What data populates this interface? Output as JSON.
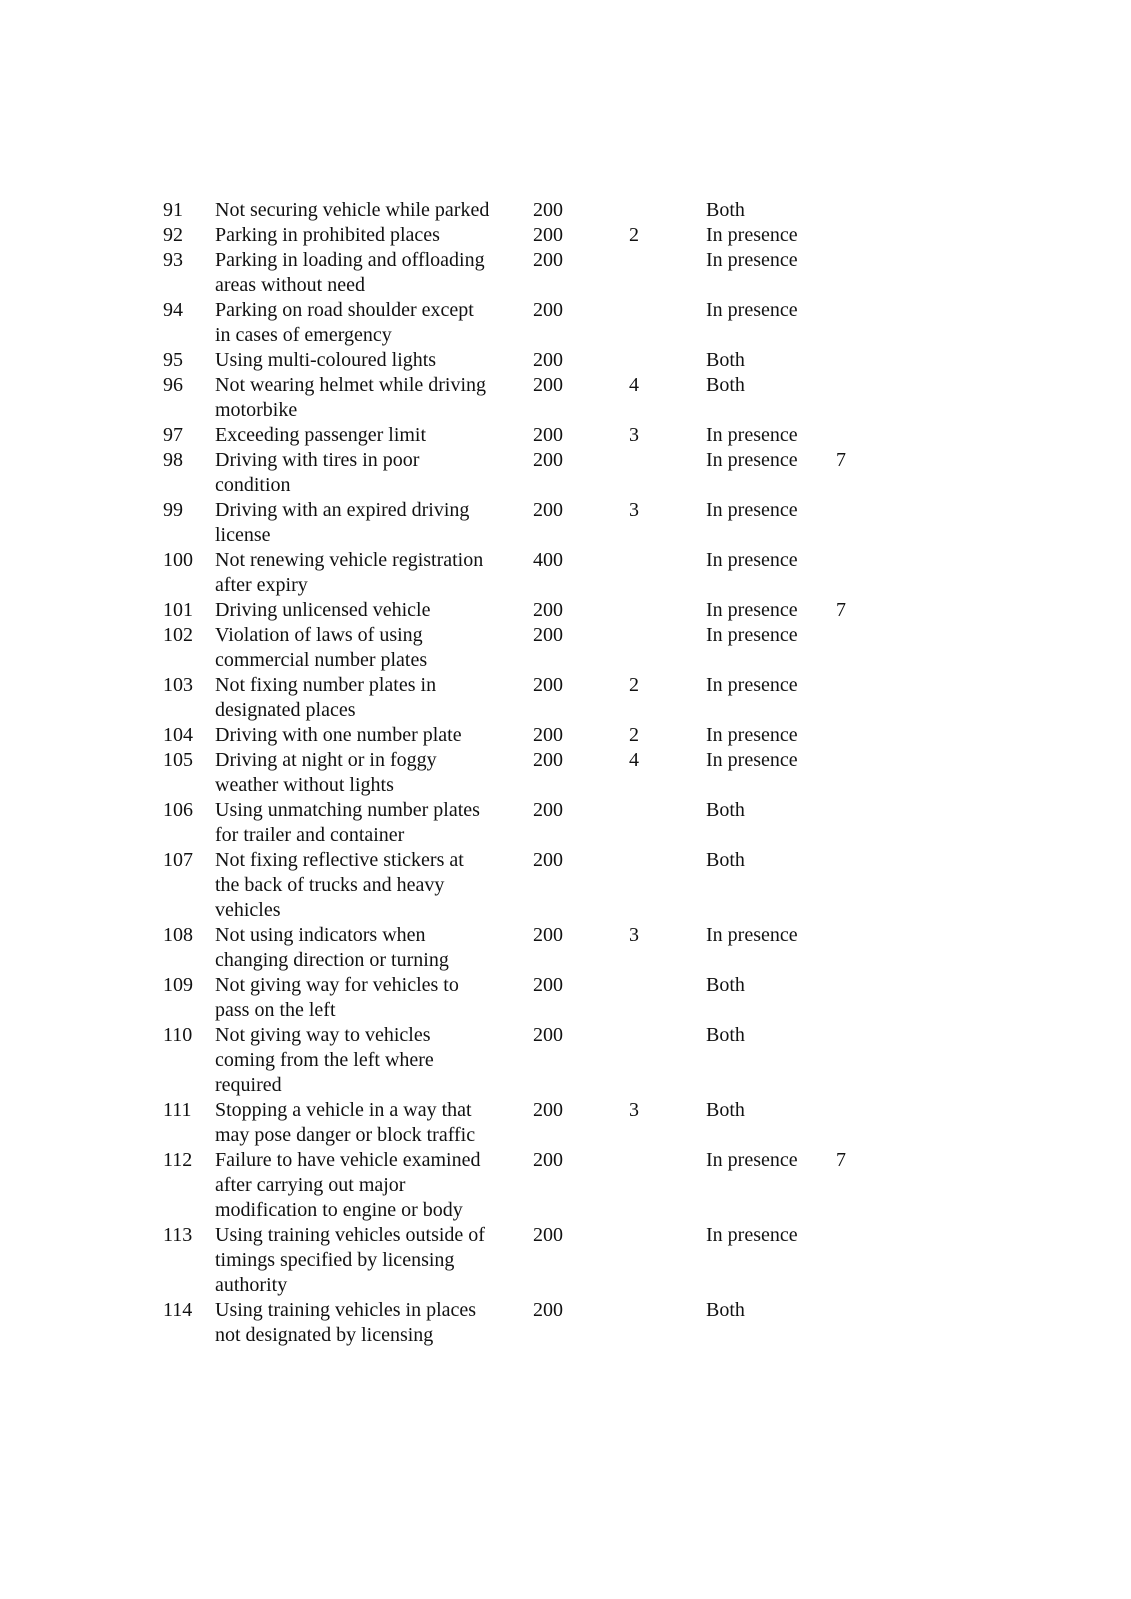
{
  "rows": [
    {
      "num": "91",
      "desc": [
        "Not securing vehicle while parked"
      ],
      "fine": "200",
      "points": "",
      "type": "Both",
      "extra": ""
    },
    {
      "num": "92",
      "desc": [
        "Parking in prohibited places"
      ],
      "fine": "200",
      "points": "2",
      "type": "In presence",
      "extra": ""
    },
    {
      "num": "93",
      "desc": [
        "Parking in loading and offloading",
        "areas without need"
      ],
      "fine": "200",
      "points": "",
      "type": "In presence",
      "extra": ""
    },
    {
      "num": "94",
      "desc": [
        "Parking on road shoulder except",
        "in cases of emergency"
      ],
      "fine": "200",
      "points": "",
      "type": "In presence",
      "extra": ""
    },
    {
      "num": "95",
      "desc": [
        "Using multi-coloured lights"
      ],
      "fine": "200",
      "points": "",
      "type": "Both",
      "extra": ""
    },
    {
      "num": "96",
      "desc": [
        "Not wearing helmet while driving",
        "motorbike"
      ],
      "fine": "200",
      "points": "4",
      "type": "Both",
      "extra": ""
    },
    {
      "num": "97",
      "desc": [
        "Exceeding passenger limit"
      ],
      "fine": "200",
      "points": "3",
      "type": "In presence",
      "extra": ""
    },
    {
      "num": "98",
      "desc": [
        "Driving with tires in poor",
        "condition"
      ],
      "fine": "200",
      "points": "",
      "type": "In presence",
      "extra": "7"
    },
    {
      "num": "99",
      "desc": [
        "Driving with an expired driving",
        "license"
      ],
      "fine": "200",
      "points": "3",
      "type": "In presence",
      "extra": ""
    },
    {
      "num": "100",
      "desc": [
        "Not renewing vehicle registration",
        "after expiry"
      ],
      "fine": "400",
      "points": "",
      "type": "In presence",
      "extra": ""
    },
    {
      "num": "101",
      "desc": [
        "Driving unlicensed vehicle"
      ],
      "fine": "200",
      "points": "",
      "type": "In presence",
      "extra": "7"
    },
    {
      "num": "102",
      "desc": [
        "Violation of laws of using",
        "commercial number plates"
      ],
      "fine": "200",
      "points": "",
      "type": "In presence",
      "extra": ""
    },
    {
      "num": "103",
      "desc": [
        "Not fixing number plates in",
        "designated places"
      ],
      "fine": "200",
      "points": "2",
      "type": "In presence",
      "extra": ""
    },
    {
      "num": "104",
      "desc": [
        "Driving with one number plate"
      ],
      "fine": "200",
      "points": "2",
      "type": "In presence",
      "extra": ""
    },
    {
      "num": "105",
      "desc": [
        "Driving at night or in foggy",
        "weather without lights"
      ],
      "fine": "200",
      "points": "4",
      "type": "In presence",
      "extra": ""
    },
    {
      "num": "106",
      "desc": [
        "Using unmatching number plates",
        "for trailer and container"
      ],
      "fine": "200",
      "points": "",
      "type": "Both",
      "extra": ""
    },
    {
      "num": "107",
      "desc": [
        "Not fixing reflective stickers at",
        "the back of trucks and heavy",
        "vehicles"
      ],
      "fine": "200",
      "points": "",
      "type": "Both",
      "extra": ""
    },
    {
      "num": "108",
      "desc": [
        "Not using indicators when",
        "changing direction or turning"
      ],
      "fine": "200",
      "points": "3",
      "type": "In presence",
      "extra": ""
    },
    {
      "num": "109",
      "desc": [
        "Not giving way for vehicles to",
        "pass on the left"
      ],
      "fine": "200",
      "points": "",
      "type": "Both",
      "extra": ""
    },
    {
      "num": "110",
      "desc": [
        "Not giving way to vehicles",
        "coming from the left where",
        "required"
      ],
      "fine": "200",
      "points": "",
      "type": "Both",
      "extra": ""
    },
    {
      "num": "111",
      "desc": [
        "Stopping a vehicle in a way that",
        "may pose danger or block traffic"
      ],
      "fine": "200",
      "points": "3",
      "type": "Both",
      "extra": ""
    },
    {
      "num": "112",
      "desc": [
        "Failure to have vehicle examined",
        "after carrying out major",
        "modification to engine or body"
      ],
      "fine": "200",
      "points": "",
      "type": "In presence",
      "extra": "7"
    },
    {
      "num": "113",
      "desc": [
        "Using training vehicles outside of",
        "timings specified by licensing",
        "authority"
      ],
      "fine": "200",
      "points": "",
      "type": "In presence",
      "extra": ""
    },
    {
      "num": "114",
      "desc": [
        "Using training vehicles in places",
        "not designated by licensing"
      ],
      "fine": "200",
      "points": "",
      "type": "Both",
      "extra": ""
    }
  ]
}
